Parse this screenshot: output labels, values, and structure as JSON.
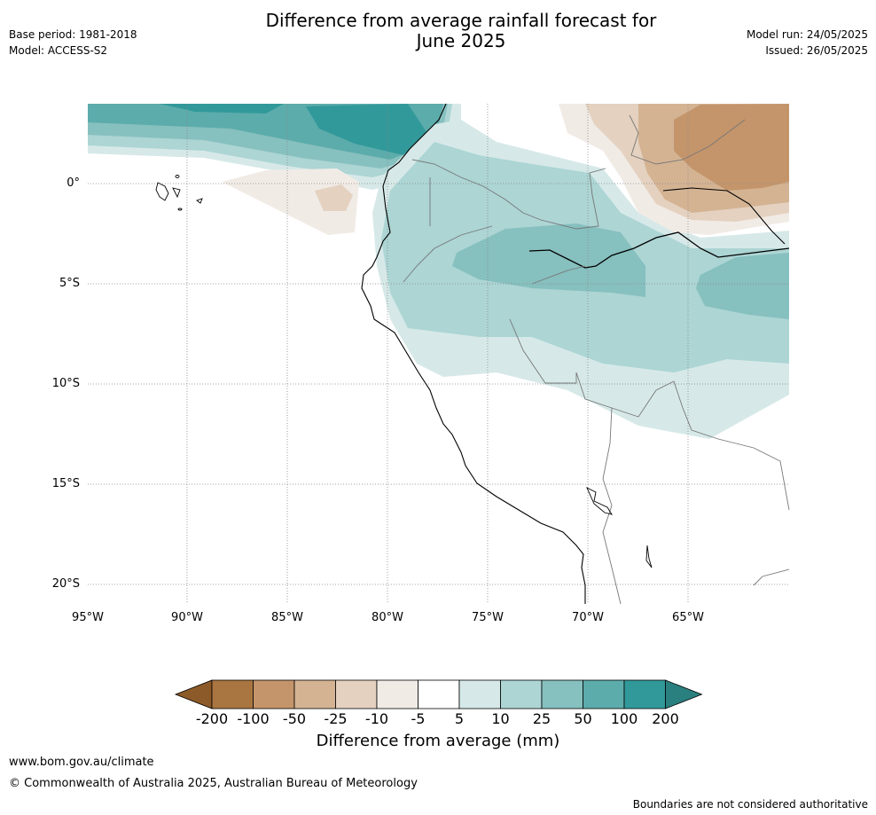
{
  "header": {
    "title_line1": "Difference from average rainfall forecast for",
    "title_line2": "June 2025",
    "base_period": "Base period: 1981-2018",
    "model": "Model: ACCESS-S2",
    "model_run": "Model run: 24/05/2025",
    "issued": "Issued: 26/05/2025"
  },
  "map": {
    "lat_labels": [
      "0°",
      "5°S",
      "10°S",
      "15°S",
      "20°S"
    ],
    "lon_labels": [
      "95°W",
      "90°W",
      "85°W",
      "80°W",
      "75°W",
      "70°W",
      "65°W"
    ]
  },
  "colorbar": {
    "title": "Difference from average (mm)",
    "tick_labels": [
      "-200",
      "-100",
      "-50",
      "-25",
      "-10",
      "-5",
      "5",
      "10",
      "25",
      "50",
      "100",
      "200"
    ],
    "colors": [
      "#8c5a28",
      "#a97540",
      "#c4956b",
      "#d4b393",
      "#e4d1bf",
      "#f1ebe6",
      "#ffffff",
      "#d6e9e8",
      "#acd5d4",
      "#86c0bf",
      "#5cacab",
      "#32999a",
      "#2a7f7f"
    ]
  },
  "footer": {
    "website": "www.bom.gov.au/climate",
    "copyright": "© Commonwealth of Australia 2025, Australian Bureau of Meteorology",
    "disclaimer": "Boundaries are not considered authoritative"
  }
}
